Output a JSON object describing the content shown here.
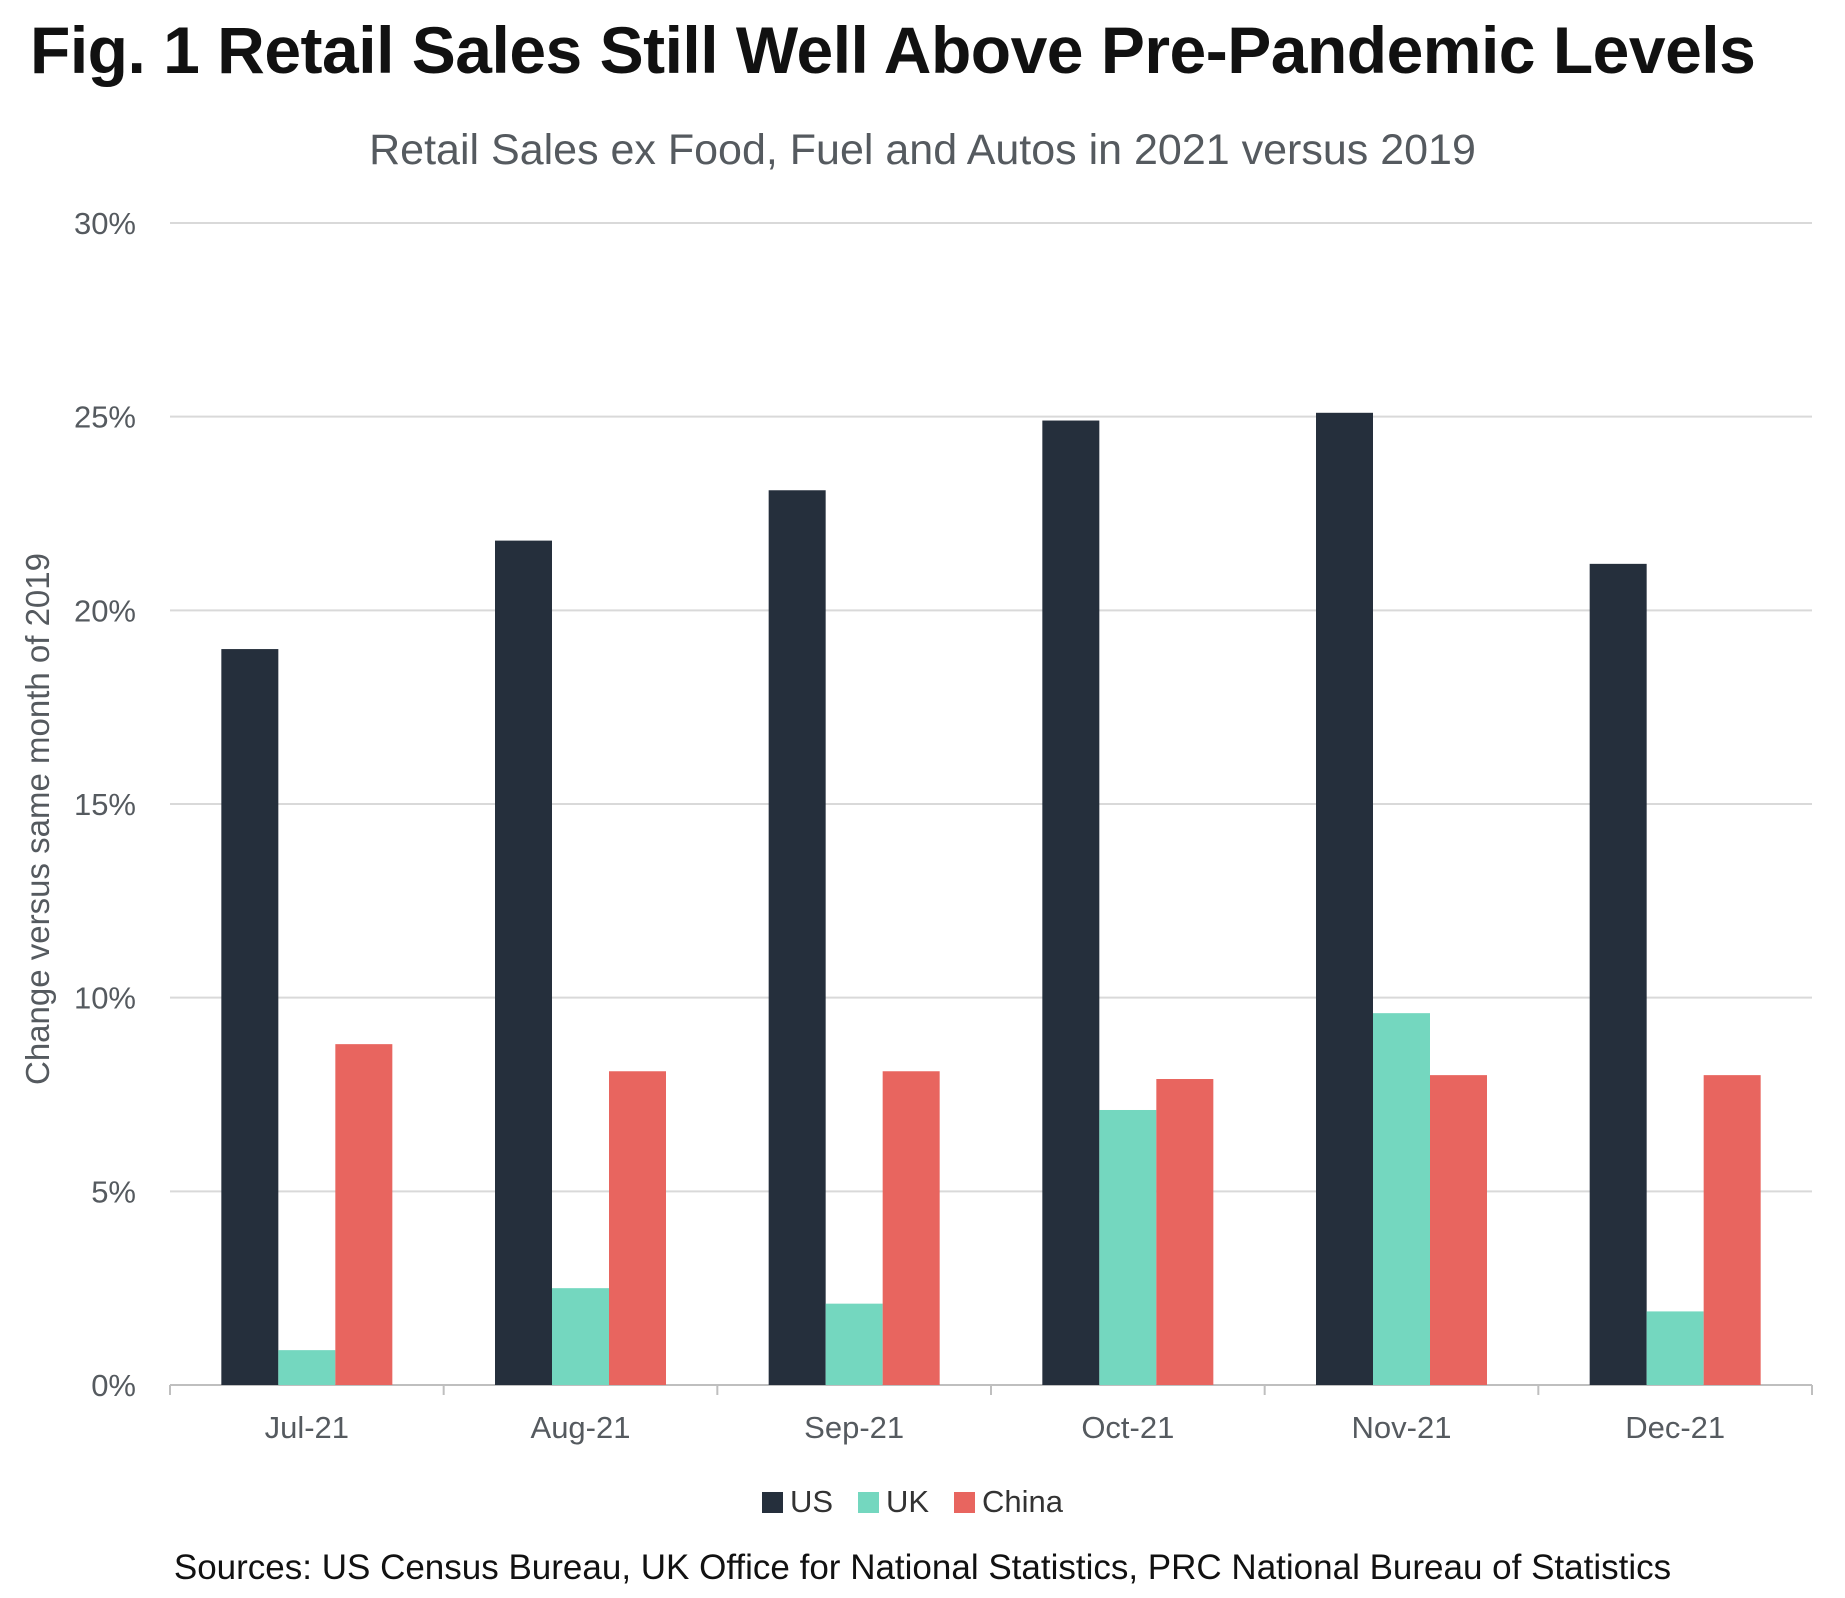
{
  "title": "Fig. 1 Retail Sales Still Well Above Pre-Pandemic Levels",
  "sources": "Sources: US Census Bureau, UK Office for National Statistics, PRC National Bureau of Statistics",
  "chart_data": {
    "type": "bar",
    "title": "Retail Sales ex Food, Fuel and Autos in 2021 versus 2019",
    "xlabel": "",
    "ylabel": "Change versus same month of 2019",
    "ylim": [
      0,
      30
    ],
    "yticks": [
      "0%",
      "5%",
      "10%",
      "15%",
      "20%",
      "25%",
      "30%"
    ],
    "categories": [
      "Jul-21",
      "Aug-21",
      "Sep-21",
      "Oct-21",
      "Nov-21",
      "Dec-21"
    ],
    "series": [
      {
        "name": "US",
        "color": "#252f3c",
        "values": [
          19.0,
          21.8,
          23.1,
          24.9,
          25.1,
          21.2
        ]
      },
      {
        "name": "UK",
        "color": "#74d7bf",
        "values": [
          0.9,
          2.5,
          2.1,
          7.1,
          9.6,
          1.9
        ]
      },
      {
        "name": "China",
        "color": "#e8655f",
        "values": [
          8.8,
          8.1,
          8.1,
          7.9,
          8.0,
          8.0
        ]
      }
    ],
    "grid": true,
    "legend": "bottom-center"
  }
}
